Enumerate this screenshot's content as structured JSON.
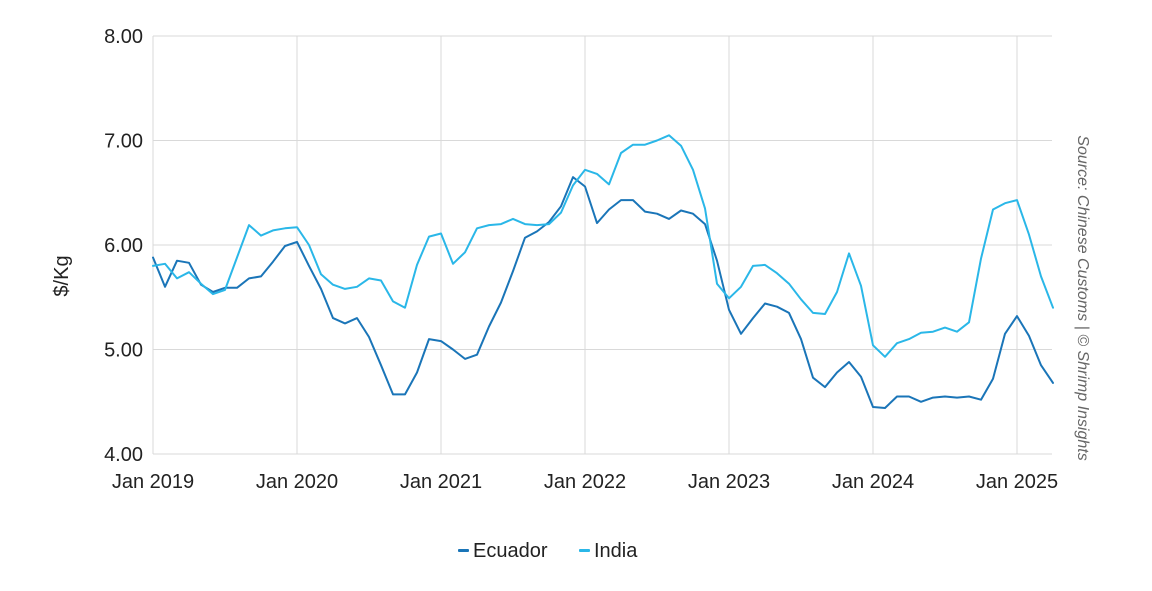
{
  "chart_data": {
    "type": "line",
    "title": "",
    "xlabel": "",
    "ylabel": "$/Kg",
    "ylim": [
      4,
      8
    ],
    "xlim": [
      "Jan 2019",
      "Apr 2025"
    ],
    "grid": true,
    "legend_position": "bottom-center",
    "y_ticks": [
      "4.00",
      "5.00",
      "6.00",
      "7.00",
      "8.00"
    ],
    "x_ticks": [
      "Jan 2019",
      "Jan 2020",
      "Jan 2021",
      "Jan 2022",
      "Jan 2023",
      "Jan 2024",
      "Jan 2025"
    ],
    "source_note": "Source: Chinese Customs | © Shrimp Insights",
    "x": [
      "Jan 2019",
      "Feb 2019",
      "Mar 2019",
      "Apr 2019",
      "May 2019",
      "Jun 2019",
      "Jul 2019",
      "Aug 2019",
      "Sep 2019",
      "Oct 2019",
      "Nov 2019",
      "Dec 2019",
      "Jan 2020",
      "Feb 2020",
      "Mar 2020",
      "Apr 2020",
      "May 2020",
      "Jun 2020",
      "Jul 2020",
      "Aug 2020",
      "Sep 2020",
      "Oct 2020",
      "Nov 2020",
      "Dec 2020",
      "Jan 2021",
      "Feb 2021",
      "Mar 2021",
      "Apr 2021",
      "May 2021",
      "Jun 2021",
      "Jul 2021",
      "Aug 2021",
      "Sep 2021",
      "Oct 2021",
      "Nov 2021",
      "Dec 2021",
      "Jan 2022",
      "Feb 2022",
      "Mar 2022",
      "Apr 2022",
      "May 2022",
      "Jun 2022",
      "Jul 2022",
      "Aug 2022",
      "Sep 2022",
      "Oct 2022",
      "Nov 2022",
      "Dec 2022",
      "Jan 2023",
      "Feb 2023",
      "Mar 2023",
      "Apr 2023",
      "May 2023",
      "Jun 2023",
      "Jul 2023",
      "Aug 2023",
      "Sep 2023",
      "Oct 2023",
      "Nov 2023",
      "Dec 2023",
      "Jan 2024",
      "Feb 2024",
      "Mar 2024",
      "Apr 2024",
      "May 2024",
      "Jun 2024",
      "Jul 2024",
      "Aug 2024",
      "Sep 2024",
      "Oct 2024",
      "Nov 2024",
      "Dec 2024",
      "Jan 2025",
      "Feb 2025",
      "Mar 2025",
      "Apr 2025"
    ],
    "series": [
      {
        "name": "Ecuador",
        "color": "#1a75b8",
        "values": [
          5.88,
          5.6,
          5.85,
          5.83,
          5.62,
          5.55,
          5.59,
          5.59,
          5.68,
          5.7,
          5.84,
          5.99,
          6.03,
          5.8,
          5.58,
          5.3,
          5.25,
          5.3,
          5.12,
          4.85,
          4.57,
          4.57,
          4.78,
          5.1,
          5.08,
          5.0,
          4.91,
          4.95,
          5.22,
          5.45,
          5.75,
          6.07,
          6.13,
          6.22,
          6.37,
          6.65,
          6.56,
          6.21,
          6.34,
          6.43,
          6.43,
          6.32,
          6.3,
          6.25,
          6.33,
          6.3,
          6.2,
          5.85,
          5.38,
          5.15,
          5.3,
          5.44,
          5.41,
          5.35,
          5.1,
          4.73,
          4.64,
          4.78,
          4.88,
          4.74,
          4.45,
          4.44,
          4.55,
          4.55,
          4.5,
          4.54,
          4.55,
          4.54,
          4.55,
          4.52,
          4.72,
          5.15,
          5.32,
          5.13,
          4.85,
          4.68
        ]
      },
      {
        "name": "India",
        "color": "#2ab7e8",
        "values": [
          5.8,
          5.82,
          5.68,
          5.74,
          5.63,
          5.53,
          5.57,
          5.88,
          6.19,
          6.09,
          6.14,
          6.16,
          6.17,
          6.0,
          5.72,
          5.62,
          5.58,
          5.6,
          5.68,
          5.66,
          5.46,
          5.4,
          5.81,
          6.08,
          6.11,
          5.82,
          5.93,
          6.16,
          6.19,
          6.2,
          6.25,
          6.2,
          6.19,
          6.2,
          6.31,
          6.57,
          6.72,
          6.68,
          6.58,
          6.88,
          6.96,
          6.96,
          7.0,
          7.05,
          6.95,
          6.72,
          6.35,
          5.63,
          5.49,
          5.6,
          5.8,
          5.81,
          5.73,
          5.63,
          5.48,
          5.35,
          5.34,
          5.55,
          5.92,
          5.61,
          5.04,
          4.93,
          5.06,
          5.1,
          5.16,
          5.17,
          5.21,
          5.17,
          5.26,
          5.87,
          6.34,
          6.4,
          6.43,
          6.1,
          5.7,
          5.4
        ]
      }
    ]
  }
}
